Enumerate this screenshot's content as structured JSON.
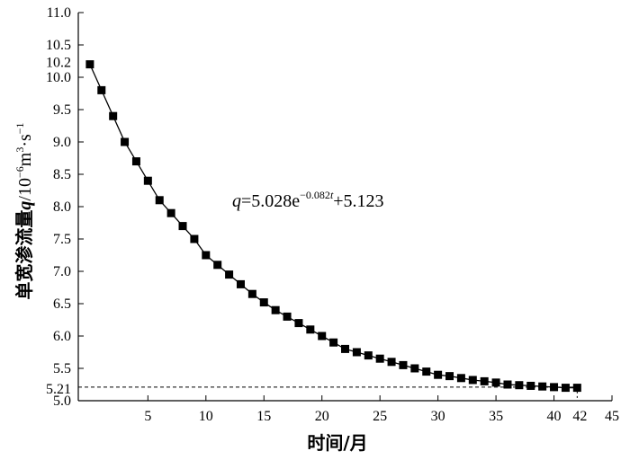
{
  "chart_data": {
    "type": "line",
    "title": "",
    "xlabel": "时间/月",
    "ylabel": {
      "prefix": "单宽渗流量",
      "symbol": "q",
      "unit_base": "/10",
      "unit_exp1": "−6",
      "unit_mid": "m",
      "unit_exp2": "3",
      "unit_mid2": "·s",
      "unit_exp3": "−1"
    },
    "xlim": [
      -1,
      45
    ],
    "ylim": [
      5.0,
      11.0
    ],
    "x_ticks": [
      5,
      10,
      15,
      20,
      25,
      30,
      35,
      40,
      45
    ],
    "x_extra_tick": "42",
    "y_ticks": [
      "5.0",
      "5.5",
      "6.0",
      "6.5",
      "7.0",
      "7.5",
      "8.0",
      "8.5",
      "9.0",
      "9.5",
      "10.0",
      "10.5",
      "11.0"
    ],
    "y_extra_ticks": [
      "5.21",
      "10.2"
    ],
    "reference_line": {
      "y": 5.21,
      "x_end": 42
    },
    "annotation": {
      "symbol": "q",
      "text": "=5.028e",
      "exponent_prefix": "−0.082",
      "exponent_var": "t",
      "suffix": "+5.123"
    },
    "series": [
      {
        "marker": "square",
        "color": "#000000",
        "x": [
          0,
          1,
          2,
          3,
          4,
          5,
          6,
          7,
          8,
          9,
          10,
          11,
          12,
          13,
          14,
          15,
          16,
          17,
          18,
          19,
          20,
          21,
          22,
          23,
          24,
          25,
          26,
          27,
          28,
          29,
          30,
          31,
          32,
          33,
          34,
          35,
          36,
          37,
          38,
          39,
          40,
          41,
          42
        ],
        "y": [
          10.2,
          9.8,
          9.4,
          9.0,
          8.7,
          8.4,
          8.1,
          7.9,
          7.7,
          7.5,
          7.25,
          7.1,
          6.95,
          6.8,
          6.65,
          6.52,
          6.4,
          6.3,
          6.2,
          6.1,
          6.0,
          5.9,
          5.8,
          5.75,
          5.7,
          5.65,
          5.6,
          5.55,
          5.5,
          5.45,
          5.4,
          5.38,
          5.35,
          5.32,
          5.3,
          5.28,
          5.25,
          5.24,
          5.23,
          5.22,
          5.21,
          5.2,
          5.2
        ]
      }
    ]
  }
}
